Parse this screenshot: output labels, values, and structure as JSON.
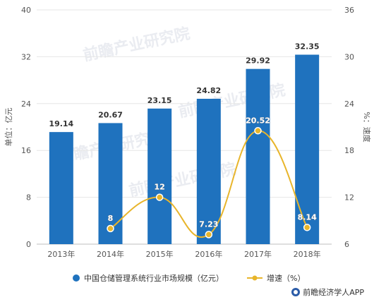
{
  "chart_data": {
    "type": "bar",
    "categories": [
      "2013年",
      "2014年",
      "2015年",
      "2016年",
      "2017年",
      "2018年"
    ],
    "series": [
      {
        "name": "中国仓储管理系统行业市场规模（亿元）",
        "type": "bar",
        "axis": "left",
        "color": "#1f72be",
        "values": [
          19.14,
          20.67,
          23.15,
          24.82,
          29.92,
          32.35
        ],
        "labels": [
          "19.14",
          "20.67",
          "23.15",
          "24.82",
          "29.92",
          "32.35"
        ]
      },
      {
        "name": "增速（%）",
        "type": "line",
        "axis": "right",
        "color": "#e8b52b",
        "values": [
          null,
          8,
          12,
          7.23,
          20.52,
          8.14
        ],
        "labels": [
          "",
          "8",
          "12",
          "7.23",
          "20.52",
          "8.14"
        ]
      }
    ],
    "ylabel": "单位：亿元",
    "y2label": "%：速度",
    "ylim": [
      0,
      40
    ],
    "yticks": [
      "0",
      "8",
      "16",
      "24",
      "32",
      "40"
    ],
    "y2lim": [
      6,
      36
    ],
    "y2ticks": [
      "6",
      "12",
      "18",
      "24",
      "30",
      "36"
    ],
    "grid": true,
    "legend": "bottom"
  },
  "watermark": "前瞻产业研究院",
  "footer": {
    "text": "前瞻经济学人APP"
  }
}
